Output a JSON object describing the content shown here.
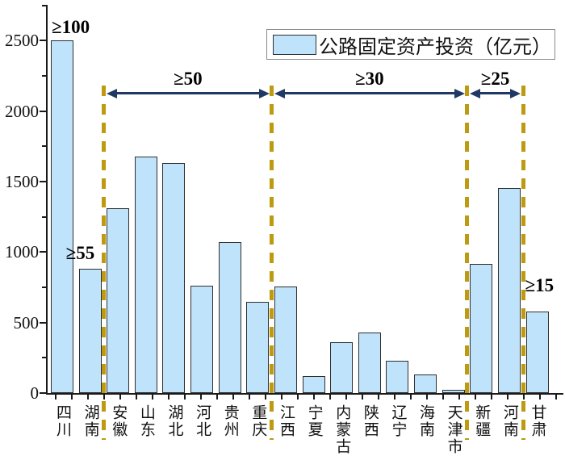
{
  "legend": {
    "label": "公路固定资产投资（亿元）"
  },
  "colors": {
    "bar_fill": "#BFE3FA",
    "bar_border": "#2F2F2F",
    "separator": "#BD9A0F",
    "arrow": "#1F3864",
    "axis": "#1A1A1A",
    "legend_border": "#8A8A8A"
  },
  "chart_data": {
    "type": "bar",
    "title": "",
    "legend_entries": [
      "公路固定资产投资（亿元）"
    ],
    "legend_position": "top-right",
    "grid": false,
    "xlabel": "",
    "ylabel": "公路固定资产投资（亿元）",
    "ylim": [
      0,
      2750
    ],
    "y_major_ticks": [
      "0",
      "500",
      "1000",
      "1500",
      "2000",
      "2500"
    ],
    "y_minor_step": 250,
    "categories": [
      "四川",
      "湖南",
      "安徽",
      "山东",
      "湖北",
      "河北",
      "贵州",
      "重庆",
      "江西",
      "宁夏",
      "内蒙古",
      "陕西",
      "辽宁",
      "海南",
      "天津市",
      "新疆",
      "河南",
      "甘肃"
    ],
    "values": [
      2500,
      880,
      1310,
      1680,
      1630,
      760,
      1070,
      645,
      755,
      120,
      360,
      430,
      230,
      130,
      25,
      915,
      1455,
      580
    ],
    "annotations": [
      {
        "text": "≥100",
        "category": "四川"
      },
      {
        "text": "≥55",
        "category": "湖南"
      },
      {
        "text": "≥15",
        "category": "甘肃"
      }
    ],
    "separators_after": [
      "湖南",
      "重庆",
      "天津市",
      "河南"
    ],
    "group_ranges": [
      {
        "label": "≥50",
        "from_category": "安徽",
        "to_category": "重庆"
      },
      {
        "label": "≥30",
        "from_category": "江西",
        "to_category": "天津市"
      },
      {
        "label": "≥25",
        "from_category": "新疆",
        "to_category": "河南"
      }
    ]
  }
}
